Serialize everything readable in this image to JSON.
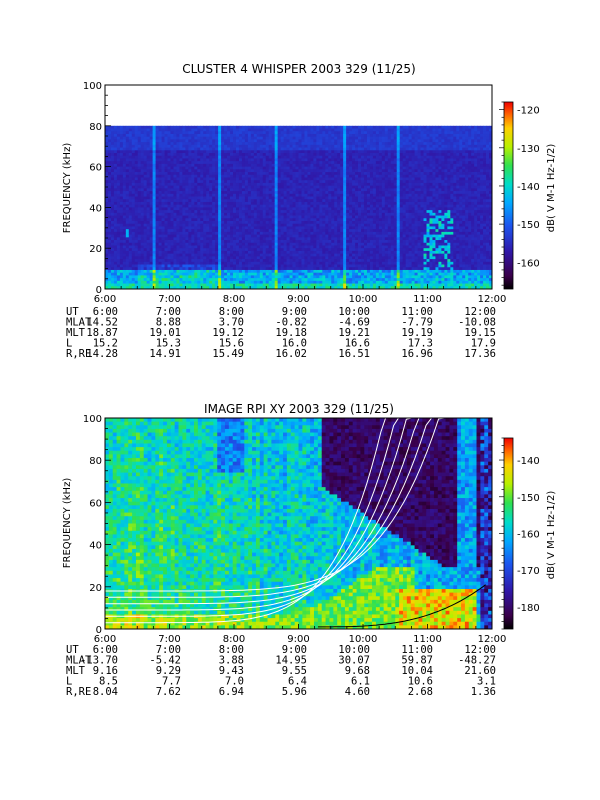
{
  "chart_data": [
    {
      "type": "heatmap",
      "title": "CLUSTER 4 WHISPER 2003 329 (11/25)",
      "ylabel": "FREQUENCY (kHz)",
      "ylim": [
        0,
        100
      ],
      "yticks": [
        "0",
        "20",
        "40",
        "60",
        "80",
        "100"
      ],
      "xlim_hours": [
        6,
        12
      ],
      "xticks": [
        "6:00",
        "7:00",
        "8:00",
        "9:00",
        "10:00",
        "11:00",
        "12:00"
      ],
      "colorbar": {
        "label": "dB( V M-1 Hz-1/2)",
        "range": [
          -167,
          -118
        ],
        "ticks": [
          "-120",
          "-130",
          "-140",
          "-150",
          "-160"
        ]
      },
      "data_freq_max_khz": 80,
      "ephemeris": {
        "rows": [
          {
            "label": "UT",
            "values": [
              "6:00",
              "7:00",
              "8:00",
              "9:00",
              "10:00",
              "11:00",
              "12:00"
            ]
          },
          {
            "label": "MLAT",
            "values": [
              "14.52",
              "8.88",
              "3.70",
              "-0.82",
              "-4.69",
              "-7.79",
              "-10.08"
            ]
          },
          {
            "label": "MLT",
            "values": [
              "18.87",
              "19.01",
              "19.12",
              "19.18",
              "19.21",
              "19.19",
              "19.15"
            ]
          },
          {
            "label": "L",
            "values": [
              "15.2",
              "15.3",
              "15.6",
              "16.0",
              "16.6",
              "17.3",
              "17.9"
            ]
          },
          {
            "label": "R,RE",
            "values": [
              "14.28",
              "14.91",
              "15.49",
              "16.02",
              "16.51",
              "16.96",
              "17.36"
            ]
          }
        ]
      }
    },
    {
      "type": "heatmap",
      "title": "IMAGE RPI XY 2003 329 (11/25)",
      "ylabel": "FREQUENCY (kHz)",
      "ylim": [
        0,
        100
      ],
      "yticks": [
        "0",
        "20",
        "40",
        "60",
        "80",
        "100"
      ],
      "xlim_hours": [
        6,
        12
      ],
      "xticks": [
        "6:00",
        "7:00",
        "8:00",
        "9:00",
        "10:00",
        "11:00",
        "12:00"
      ],
      "colorbar": {
        "label": "dB( V M-1 Hz-1/2)",
        "range": [
          -186,
          -134
        ],
        "ticks": [
          "-140",
          "-150",
          "-160",
          "-170",
          "-180"
        ]
      },
      "overlay_curves": "white model frequency curves rising steeply near 11:00-12:00",
      "ephemeris": {
        "rows": [
          {
            "label": "UT",
            "values": [
              "6:00",
              "7:00",
              "8:00",
              "9:00",
              "10:00",
              "11:00",
              "12:00"
            ]
          },
          {
            "label": "MLAT",
            "values": [
              "-13.70",
              "-5.42",
              "3.88",
              "14.95",
              "30.07",
              "59.87",
              "-48.27"
            ]
          },
          {
            "label": "MLT",
            "values": [
              "9.16",
              "9.29",
              "9.43",
              "9.55",
              "9.68",
              "10.04",
              "21.60"
            ]
          },
          {
            "label": "L",
            "values": [
              "8.5",
              "7.7",
              "7.0",
              "6.4",
              "6.1",
              "10.6",
              "3.1"
            ]
          },
          {
            "label": "R,RE",
            "values": [
              "8.04",
              "7.62",
              "6.94",
              "5.96",
              "4.60",
              "2.68",
              "1.36"
            ]
          }
        ]
      }
    }
  ]
}
